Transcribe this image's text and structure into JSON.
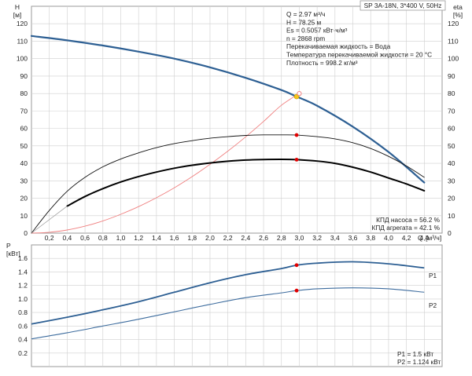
{
  "chart_data": [
    {
      "type": "line",
      "title": "SP 3A-18N, 3*400 V, 50Hz",
      "ylabel_left": [
        "H",
        "[м]"
      ],
      "ylabel_right": [
        "eta",
        "[%]"
      ],
      "xlabel": [
        "Q",
        "[м³/ч]"
      ],
      "xlim": [
        0,
        4.6
      ],
      "ylim": [
        0,
        130
      ],
      "grid": true,
      "x_ticks": [
        0.2,
        0.4,
        0.6,
        0.8,
        1.0,
        1.2,
        1.4,
        1.6,
        1.8,
        2.0,
        2.2,
        2.4,
        2.6,
        2.8,
        3.0,
        3.2,
        3.4,
        3.6,
        3.8,
        4.0,
        4.2,
        4.4
      ],
      "x_tick_labels": [
        "0,2",
        "0,4",
        "0,6",
        "0,8",
        "1,0",
        "1,2",
        "1,4",
        "1,6",
        "1,8",
        "2,0",
        "2,2",
        "2,4",
        "2,6",
        "2,8",
        "3,0",
        "3,2",
        "3,4",
        "3,6",
        "3,8",
        "4,0",
        "4,2",
        "4,4"
      ],
      "y_ticks": [
        0,
        10,
        20,
        30,
        40,
        50,
        60,
        70,
        80,
        90,
        100,
        110,
        120
      ],
      "y_tick_labels": [
        "0",
        "10",
        "20",
        "30",
        "40",
        "50",
        "60",
        "70",
        "80",
        "90",
        "100",
        "110",
        "120"
      ],
      "info_lines": [
        "Q = 2.97 м³/ч",
        "H = 78.25 м",
        "Es = 0.5057 кВт·ч/м³",
        "n = 2868 rpm",
        "Перекачиваемая жидкость = Вода",
        "Температура перекачиваемой жидкости = 20 °C",
        "Плотность = 998.2 кг/м³"
      ],
      "efficiency_lines": [
        "КПД насоса = 56.2 %",
        "КПД агрегата = 42.1 %"
      ],
      "colors": {
        "head": "#2d5f93",
        "system": "#f08080",
        "eff_pump": "#111111",
        "eff_total": "#000000",
        "marker": "#e00000",
        "duty_point": "#f5c518",
        "grid": "#cfcfcf"
      },
      "series": [
        {
          "key": "head",
          "x": [
            0,
            0.4,
            0.8,
            1.2,
            1.6,
            2.0,
            2.4,
            2.8,
            2.97,
            3.2,
            3.6,
            4.0,
            4.4
          ],
          "values": [
            113,
            110.5,
            107.5,
            104,
            100,
            95,
            89,
            82,
            78.25,
            73,
            61,
            46.5,
            29
          ]
        },
        {
          "key": "system",
          "x": [
            0,
            0.2,
            0.4,
            0.6,
            0.8,
            1.0,
            1.2,
            1.4,
            1.6,
            1.8,
            2.0,
            2.2,
            2.4,
            2.6,
            2.8,
            3.0
          ],
          "values": [
            0,
            0.5,
            1.8,
            4,
            7,
            10.8,
            15.2,
            20.3,
            26,
            32.4,
            39.4,
            47,
            55.2,
            64,
            73.3,
            80
          ]
        },
        {
          "key": "eff_pump",
          "x": [
            0,
            0.2,
            0.4,
            0.6,
            0.8,
            1.0,
            1.2,
            1.4,
            1.6,
            1.8,
            2.0,
            2.2,
            2.4,
            2.6,
            2.8,
            2.97,
            3.2,
            3.4,
            3.6,
            3.8,
            4.0,
            4.2,
            4.4
          ],
          "values": [
            0,
            13,
            24,
            32,
            38,
            42.5,
            46,
            49,
            51.3,
            53,
            54.4,
            55.3,
            56,
            56.3,
            56.3,
            56.2,
            55.3,
            54,
            51.8,
            48.5,
            44,
            38.5,
            32
          ]
        },
        {
          "key": "eff_total",
          "x": [
            0.4,
            0.6,
            0.8,
            1.0,
            1.2,
            1.4,
            1.6,
            1.8,
            2.0,
            2.2,
            2.4,
            2.6,
            2.8,
            2.97,
            3.2,
            3.4,
            3.6,
            3.8,
            4.0,
            4.2,
            4.4
          ],
          "values": [
            15.5,
            21,
            25.5,
            29.3,
            32.4,
            35,
            37.2,
            38.9,
            40.2,
            41.2,
            41.9,
            42.2,
            42.3,
            42.1,
            41.3,
            40,
            37.8,
            35,
            31.6,
            28.2,
            24.3
          ]
        }
      ],
      "operating_point": {
        "q": 2.97,
        "head": 78.25,
        "eff_pump": 56.2,
        "eff_total": 42.1
      },
      "system_end": {
        "q": 3.0,
        "head": 80
      }
    },
    {
      "type": "line",
      "ylabel": [
        "P",
        "[кВт]"
      ],
      "xlim": [
        0,
        4.6
      ],
      "ylim": [
        0,
        1.8
      ],
      "grid": true,
      "y_ticks": [
        0,
        0.2,
        0.4,
        0.6,
        0.8,
        1.0,
        1.2,
        1.4,
        1.6
      ],
      "y_tick_labels": [
        "0.0",
        "0.2",
        "0.4",
        "0.6",
        "0.8",
        "1.0",
        "1.2",
        "1.4",
        "1.6"
      ],
      "legend_P1": "P1",
      "legend_P2": "P2",
      "values_text": [
        "P1 = 1.5 кВт",
        "P2 = 1.124 кВт"
      ],
      "colors": {
        "P1": "#2d5f93",
        "P2": "#3d6c9e",
        "marker": "#e00000"
      },
      "series": [
        {
          "name": "P1",
          "x": [
            0,
            0.4,
            0.8,
            1.2,
            1.6,
            2.0,
            2.4,
            2.8,
            2.97,
            3.2,
            3.6,
            4.0,
            4.4
          ],
          "values": [
            0.63,
            0.73,
            0.84,
            0.96,
            1.1,
            1.24,
            1.36,
            1.45,
            1.5,
            1.53,
            1.55,
            1.52,
            1.46
          ]
        },
        {
          "name": "P2",
          "x": [
            0,
            0.4,
            0.8,
            1.2,
            1.6,
            2.0,
            2.4,
            2.8,
            2.97,
            3.2,
            3.6,
            4.0,
            4.4
          ],
          "values": [
            0.41,
            0.5,
            0.6,
            0.7,
            0.81,
            0.92,
            1.02,
            1.09,
            1.124,
            1.15,
            1.165,
            1.15,
            1.1
          ]
        }
      ],
      "operating_point": {
        "q": 2.97,
        "P1": 1.5,
        "P2": 1.124
      }
    }
  ]
}
